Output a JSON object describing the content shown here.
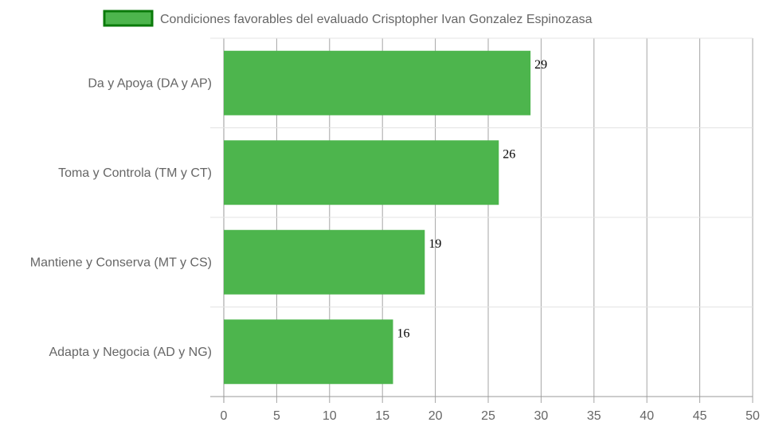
{
  "chart_data": {
    "type": "bar",
    "orientation": "horizontal",
    "categories": [
      "Da y Apoya (DA y AP)",
      "Toma y Controla (TM y CT)",
      "Mantiene y Conserva (MT y CS)",
      "Adapta y Negocia (AD y NG)"
    ],
    "series": [
      {
        "name": "Condiciones favorables del evaluado Crisptopher Ivan Gonzalez Espinozasa",
        "values": [
          29,
          26,
          19,
          16
        ],
        "color": "#4db54d",
        "border_color": "#0a7a0a"
      }
    ],
    "x_ticks": [
      0,
      5,
      10,
      15,
      20,
      25,
      30,
      35,
      40,
      45,
      50
    ],
    "xlim": [
      0,
      50
    ],
    "grid": true,
    "legend_position": "top"
  }
}
